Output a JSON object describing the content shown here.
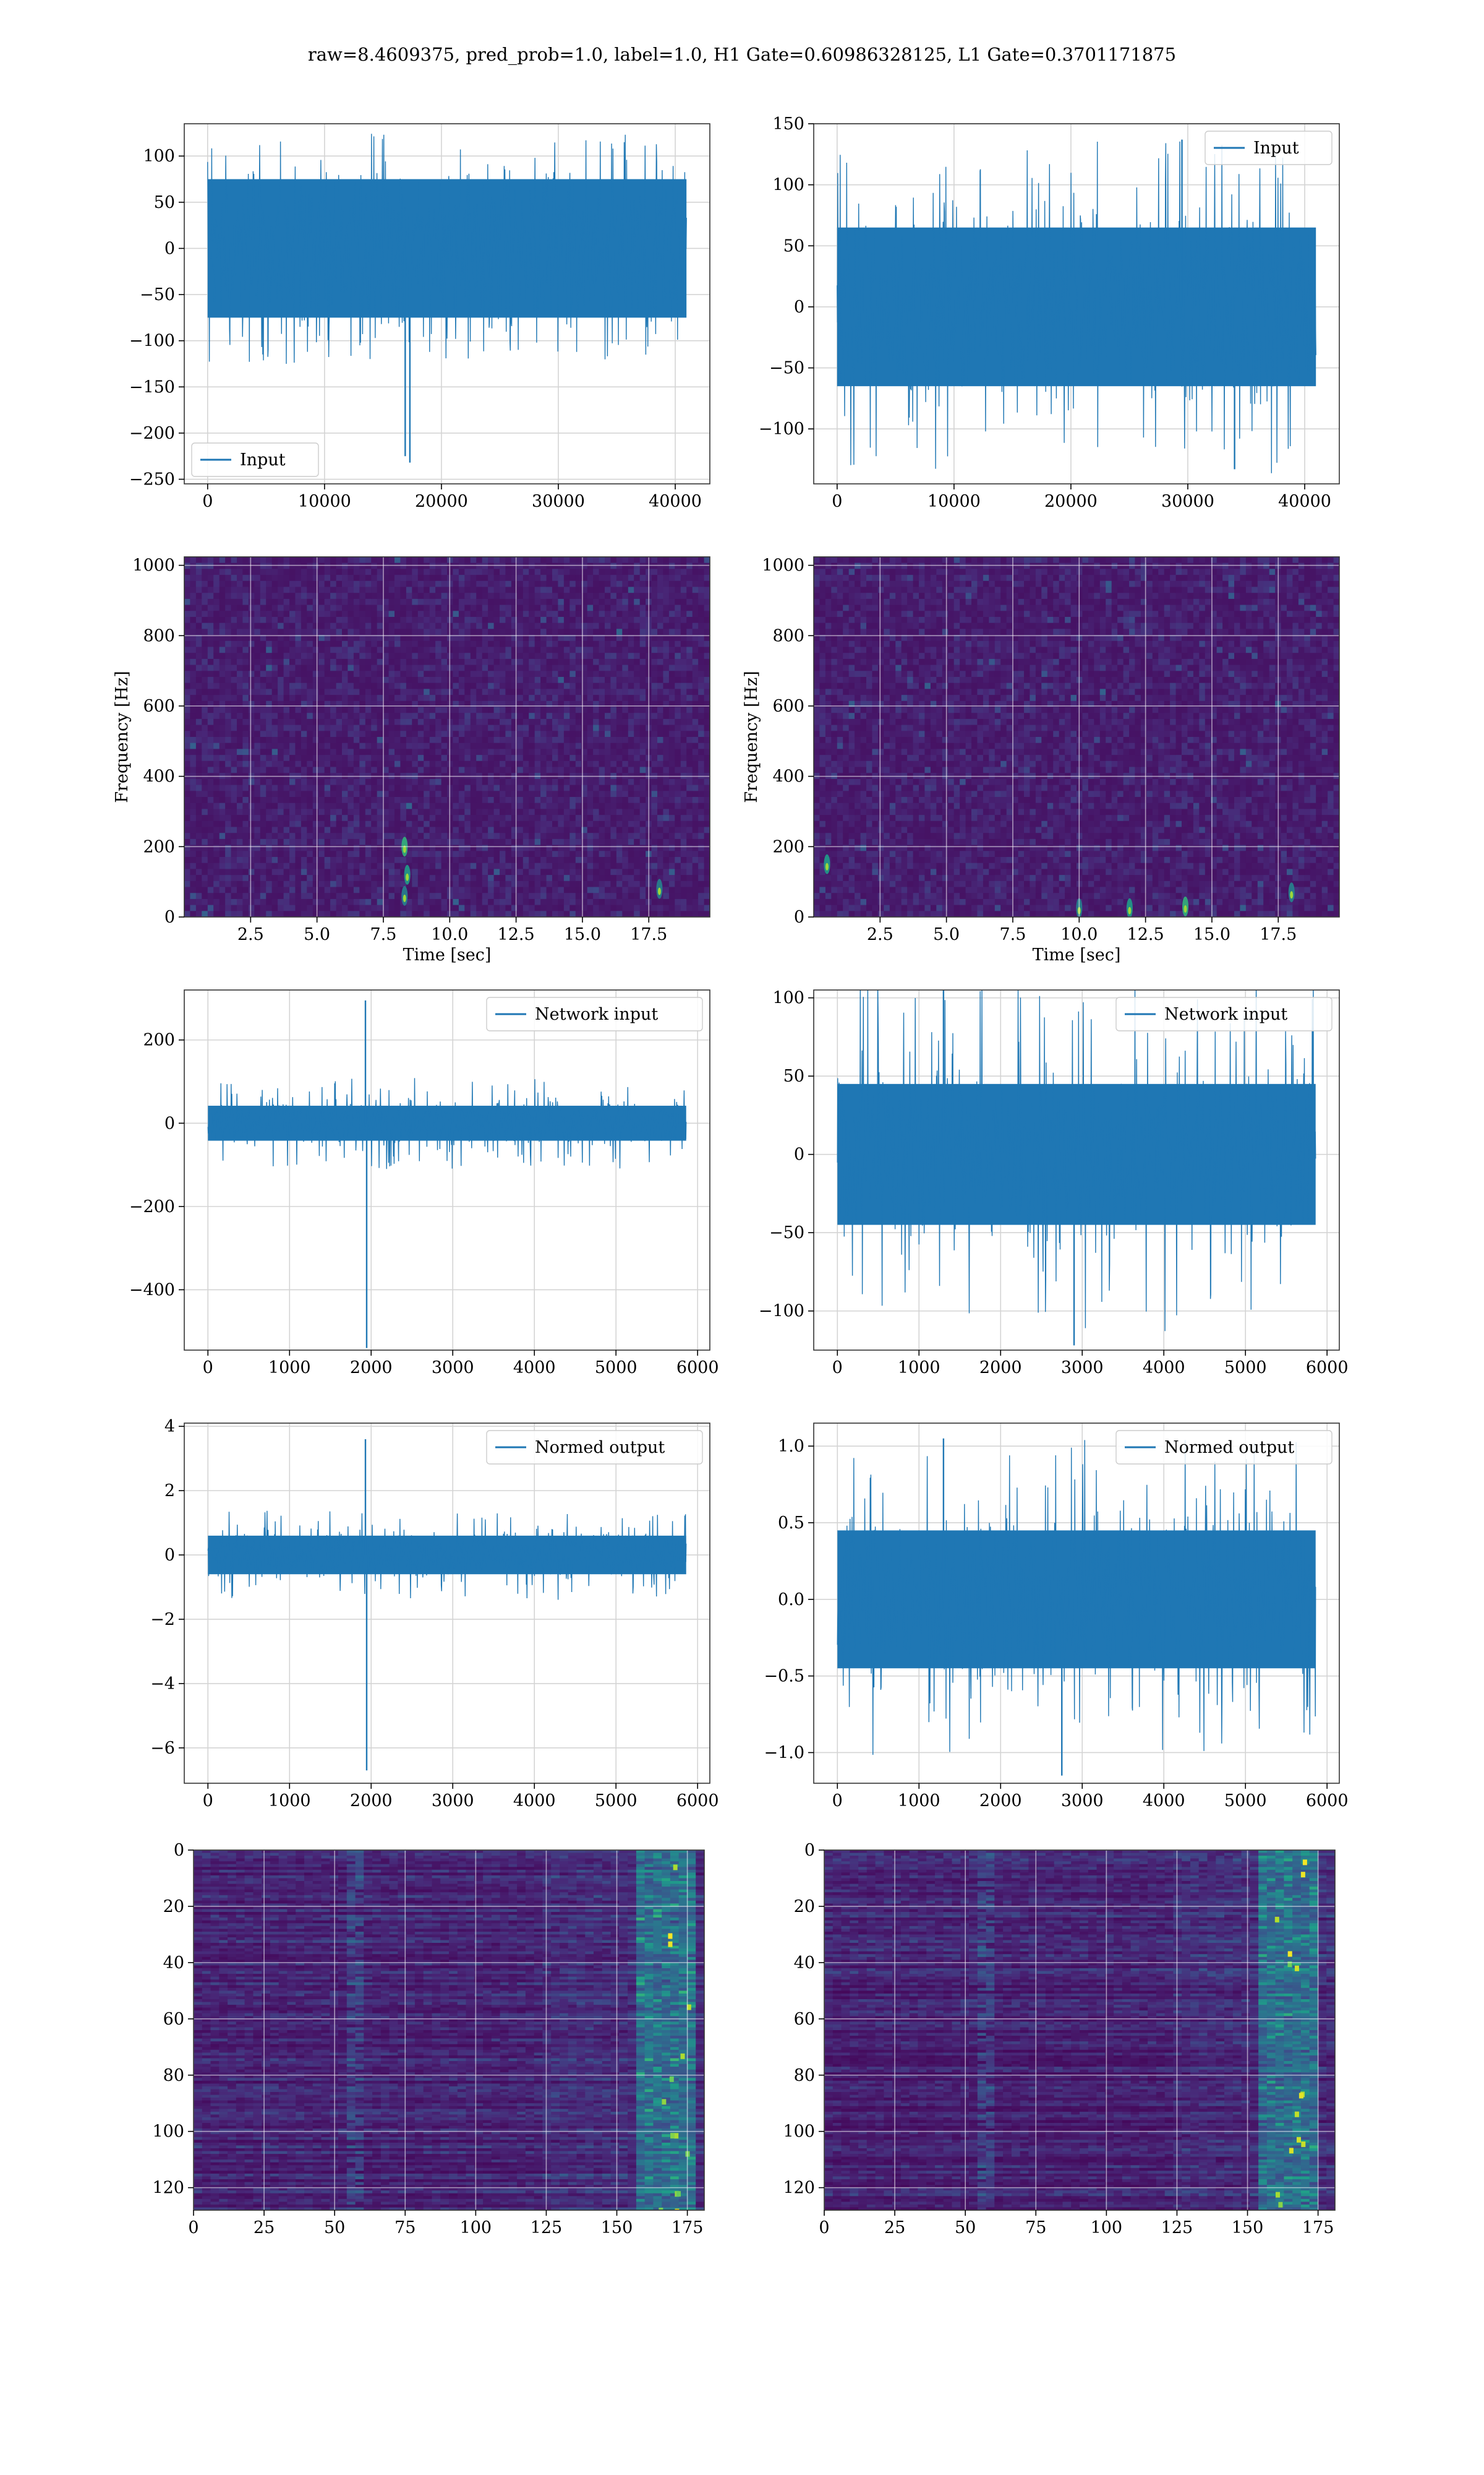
{
  "figure": {
    "title": "raw=8.4609375, pred_prob=1.0, label=1.0, H1 Gate=0.60986328125, L1 Gate=0.3701171875"
  },
  "colors": {
    "line": "#1f77b4",
    "grid": "#d4d4d4",
    "axis": "#000000",
    "viridis_low": "#440154",
    "viridis_high": "#fde725"
  },
  "chart_data": [
    {
      "id": "h1-input",
      "type": "line",
      "legend": "Input",
      "legend_loc": "lower-left",
      "grid": true,
      "xlim": [
        -2000,
        42960
      ],
      "ylim": [
        -255,
        135
      ],
      "xticks": [
        0,
        10000,
        20000,
        30000,
        40000
      ],
      "xticklabels": [
        "0",
        "10000",
        "20000",
        "30000",
        "40000"
      ],
      "yticks": [
        -250,
        -200,
        -150,
        -100,
        -50,
        0,
        50,
        100
      ],
      "yticklabels": [
        "−250",
        "−200",
        "−150",
        "−100",
        "−50",
        "0",
        "50",
        "100"
      ],
      "series": [
        {
          "name": "Input",
          "n_samples": 40960,
          "x_range": [
            0,
            40960
          ],
          "envelope": [
            -75,
            75
          ],
          "peaks_max": 125,
          "events": [
            [
              16900,
              -225
            ],
            [
              17300,
              -232
            ]
          ]
        }
      ]
    },
    {
      "id": "l1-input",
      "type": "line",
      "legend": "Input",
      "legend_loc": "upper-right",
      "grid": true,
      "xlim": [
        -2000,
        42960
      ],
      "ylim": [
        -145,
        150
      ],
      "xticks": [
        0,
        10000,
        20000,
        30000,
        40000
      ],
      "xticklabels": [
        "0",
        "10000",
        "20000",
        "30000",
        "40000"
      ],
      "yticks": [
        -100,
        -50,
        0,
        50,
        100,
        150
      ],
      "yticklabels": [
        "−100",
        "−50",
        "0",
        "50",
        "100",
        "150"
      ],
      "series": [
        {
          "name": "Input",
          "n_samples": 40960,
          "x_range": [
            0,
            40960
          ],
          "envelope": [
            -65,
            65
          ],
          "peaks_max": 137,
          "events": [
            [
              29500,
              137
            ],
            [
              34000,
              -133
            ]
          ]
        }
      ]
    },
    {
      "id": "h1-spectrogram",
      "type": "heatmap",
      "grid": true,
      "xlabel": "Time [sec]",
      "ylabel": "Frequency [Hz]",
      "xlim": [
        0,
        19.8
      ],
      "ylim": [
        0,
        1024
      ],
      "xticks": [
        2.5,
        5.0,
        7.5,
        10.0,
        12.5,
        15.0,
        17.5
      ],
      "xticklabels": [
        "2.5",
        "5.0",
        "7.5",
        "10.0",
        "12.5",
        "15.0",
        "17.5"
      ],
      "yticks": [
        0,
        200,
        400,
        600,
        800,
        1000
      ],
      "yticklabels": [
        "0",
        "200",
        "400",
        "600",
        "800",
        "1000"
      ],
      "hotspots": [
        [
          8.3,
          60
        ],
        [
          8.4,
          120
        ],
        [
          8.3,
          200
        ],
        [
          17.9,
          80
        ]
      ]
    },
    {
      "id": "l1-spectrogram",
      "type": "heatmap",
      "grid": true,
      "xlabel": "Time [sec]",
      "ylabel": "Frequency [Hz]",
      "xlim": [
        0,
        19.8
      ],
      "ylim": [
        0,
        1024
      ],
      "xticks": [
        2.5,
        5.0,
        7.5,
        10.0,
        12.5,
        15.0,
        17.5
      ],
      "xticklabels": [
        "2.5",
        "5.0",
        "7.5",
        "10.0",
        "12.5",
        "15.0",
        "17.5"
      ],
      "yticks": [
        0,
        200,
        400,
        600,
        800,
        1000
      ],
      "yticklabels": [
        "0",
        "200",
        "400",
        "600",
        "800",
        "1000"
      ],
      "hotspots": [
        [
          10.0,
          25
        ],
        [
          11.9,
          25
        ],
        [
          14.0,
          30
        ],
        [
          18.0,
          70
        ],
        [
          0.5,
          150
        ]
      ]
    },
    {
      "id": "h1-network-input",
      "type": "line",
      "legend": "Network input",
      "legend_loc": "upper-right",
      "grid": true,
      "xlim": [
        -290,
        6150
      ],
      "ylim": [
        -545,
        320
      ],
      "xticks": [
        0,
        1000,
        2000,
        3000,
        4000,
        5000,
        6000
      ],
      "xticklabels": [
        "0",
        "1000",
        "2000",
        "3000",
        "4000",
        "5000",
        "6000"
      ],
      "yticks": [
        -400,
        -200,
        0,
        200
      ],
      "yticklabels": [
        "−400",
        "−200",
        "0",
        "200"
      ],
      "series": [
        {
          "name": "Network input",
          "n_samples": 5860,
          "x_range": [
            0,
            5860
          ],
          "envelope": [
            -42,
            42
          ],
          "peaks_max": 110,
          "events": [
            [
              1930,
              295
            ],
            [
              1945,
              -540
            ]
          ]
        }
      ]
    },
    {
      "id": "l1-network-input",
      "type": "line",
      "legend": "Network input",
      "legend_loc": "upper-right",
      "grid": true,
      "xlim": [
        -290,
        6150
      ],
      "ylim": [
        -125,
        105
      ],
      "xticks": [
        0,
        1000,
        2000,
        3000,
        4000,
        5000,
        6000
      ],
      "xticklabels": [
        "0",
        "1000",
        "2000",
        "3000",
        "4000",
        "5000",
        "6000"
      ],
      "yticks": [
        -100,
        -50,
        0,
        50,
        100
      ],
      "yticklabels": [
        "−100",
        "−50",
        "0",
        "50",
        "100"
      ],
      "series": [
        {
          "name": "Network input",
          "n_samples": 5860,
          "x_range": [
            0,
            5860
          ],
          "envelope": [
            -45,
            45
          ],
          "peaks_max": 115,
          "events": [
            [
              1300,
              115
            ],
            [
              2900,
              -122
            ]
          ]
        }
      ]
    },
    {
      "id": "h1-normed-output",
      "type": "line",
      "legend": "Normed output",
      "legend_loc": "upper-right",
      "grid": true,
      "xlim": [
        -290,
        6150
      ],
      "ylim": [
        -7.1,
        4.1
      ],
      "xticks": [
        0,
        1000,
        2000,
        3000,
        4000,
        5000,
        6000
      ],
      "xticklabels": [
        "0",
        "1000",
        "2000",
        "3000",
        "4000",
        "5000",
        "6000"
      ],
      "yticks": [
        -6,
        -4,
        -2,
        0,
        2,
        4
      ],
      "yticklabels": [
        "−6",
        "−4",
        "−2",
        "0",
        "2",
        "4"
      ],
      "series": [
        {
          "name": "Normed output",
          "n_samples": 5860,
          "x_range": [
            0,
            5860
          ],
          "envelope": [
            -0.6,
            0.6
          ],
          "peaks_max": 1.4,
          "events": [
            [
              1930,
              3.6
            ],
            [
              1945,
              -6.7
            ]
          ]
        }
      ]
    },
    {
      "id": "l1-normed-output",
      "type": "line",
      "legend": "Normed output",
      "legend_loc": "upper-right",
      "grid": true,
      "xlim": [
        -290,
        6150
      ],
      "ylim": [
        -1.2,
        1.15
      ],
      "xticks": [
        0,
        1000,
        2000,
        3000,
        4000,
        5000,
        6000
      ],
      "xticklabels": [
        "0",
        "1000",
        "2000",
        "3000",
        "4000",
        "5000",
        "6000"
      ],
      "yticks": [
        -1.0,
        -0.5,
        0.0,
        0.5,
        1.0
      ],
      "yticklabels": [
        "−1.0",
        "−0.5",
        "0.0",
        "0.5",
        "1.0"
      ],
      "series": [
        {
          "name": "Normed output",
          "n_samples": 5860,
          "x_range": [
            0,
            5860
          ],
          "envelope": [
            -0.45,
            0.45
          ],
          "peaks_max": 1.05,
          "events": [
            [
              1300,
              1.05
            ],
            [
              2750,
              -1.15
            ]
          ]
        }
      ]
    },
    {
      "id": "h1-feature-map",
      "type": "heatmap",
      "grid": true,
      "xlim": [
        0,
        181
      ],
      "ylim": [
        128,
        0
      ],
      "xticks": [
        0,
        25,
        50,
        75,
        100,
        125,
        150,
        175
      ],
      "xticklabels": [
        "0",
        "25",
        "50",
        "75",
        "100",
        "125",
        "150",
        "175"
      ],
      "yticks": [
        0,
        20,
        40,
        60,
        80,
        100,
        120
      ],
      "yticklabels": [
        "0",
        "20",
        "40",
        "60",
        "80",
        "100",
        "120"
      ],
      "bright_band": [
        158,
        178
      ]
    },
    {
      "id": "l1-feature-map",
      "type": "heatmap",
      "grid": true,
      "xlim": [
        0,
        181
      ],
      "ylim": [
        128,
        0
      ],
      "xticks": [
        0,
        25,
        50,
        75,
        100,
        125,
        150,
        175
      ],
      "xticklabels": [
        "0",
        "25",
        "50",
        "75",
        "100",
        "125",
        "150",
        "175"
      ],
      "yticks": [
        0,
        20,
        40,
        60,
        80,
        100,
        120
      ],
      "yticklabels": [
        "0",
        "20",
        "40",
        "60",
        "80",
        "100",
        "120"
      ],
      "bright_band": [
        155,
        175
      ]
    }
  ]
}
